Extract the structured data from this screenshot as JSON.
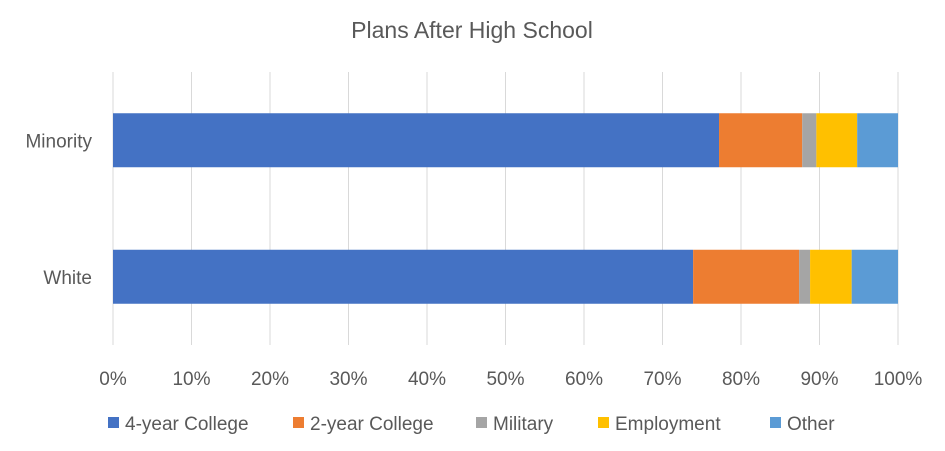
{
  "chart_data": {
    "type": "bar",
    "orientation": "horizontal",
    "stacked": "percent",
    "title": "Plans After High School",
    "categories": [
      "Minority",
      "White"
    ],
    "series": [
      {
        "name": "4-year College",
        "color": "#4472C4",
        "values": [
          77.2,
          73.9
        ]
      },
      {
        "name": "2-year College",
        "color": "#ED7D31",
        "values": [
          10.6,
          13.5
        ]
      },
      {
        "name": "Military",
        "color": "#A5A5A5",
        "values": [
          1.8,
          1.4
        ]
      },
      {
        "name": "Employment",
        "color": "#FFC000",
        "values": [
          5.2,
          5.3
        ]
      },
      {
        "name": "Other",
        "color": "#5B9BD5",
        "values": [
          5.2,
          5.9
        ]
      }
    ],
    "xlim": [
      0,
      100
    ],
    "xticks": [
      "0%",
      "10%",
      "20%",
      "30%",
      "40%",
      "50%",
      "60%",
      "70%",
      "80%",
      "90%",
      "100%"
    ],
    "grid": true,
    "legend_position": "bottom"
  }
}
